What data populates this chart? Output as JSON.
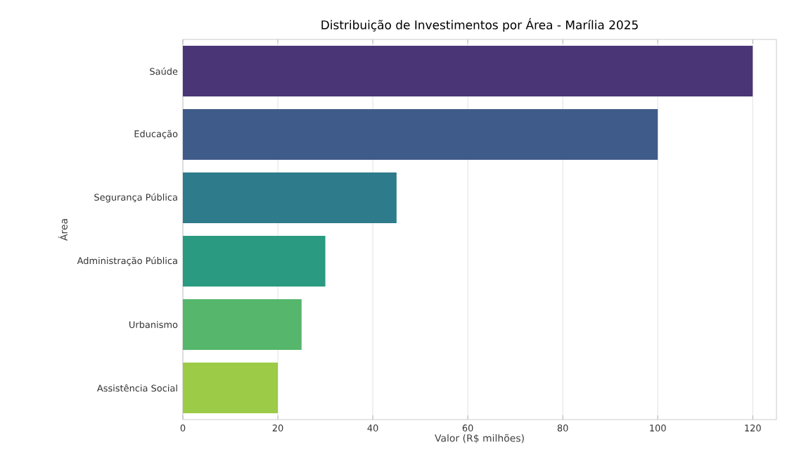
{
  "chart_data": {
    "type": "bar",
    "orientation": "horizontal",
    "title": "Distribuição de Investimentos por Área - Marília 2025",
    "xlabel": "Valor (R$ milhões)",
    "ylabel": "Área",
    "categories": [
      "Saúde",
      "Educação",
      "Segurança Pública",
      "Administração Pública",
      "Urbanismo",
      "Assistência Social"
    ],
    "values": [
      120,
      100,
      45,
      30,
      25,
      20
    ],
    "colors": [
      "#4a3676",
      "#3f5b8a",
      "#2e7b8c",
      "#2a9a80",
      "#55b66c",
      "#9ccb48"
    ],
    "xlim": [
      0,
      125
    ],
    "xticks": [
      0,
      20,
      40,
      60,
      80,
      100,
      120
    ],
    "grid": "x"
  }
}
